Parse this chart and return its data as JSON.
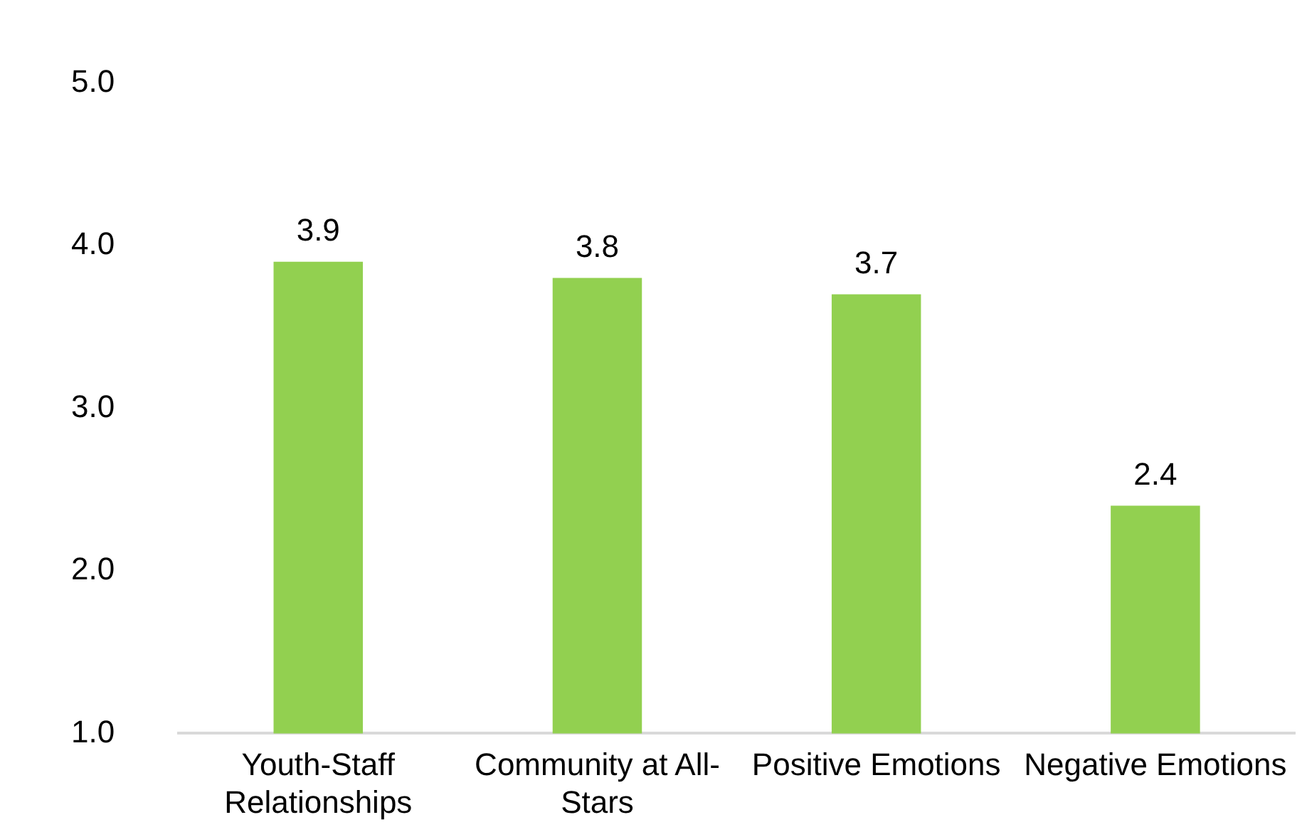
{
  "chart_data": {
    "type": "bar",
    "categories": [
      "Youth-Staff Relationships",
      "Community at All-Stars",
      "Positive Emotions",
      "Negative Emotions"
    ],
    "values": [
      3.9,
      3.8,
      3.7,
      2.4
    ],
    "color": "#92d050",
    "ylim": [
      1,
      5
    ],
    "yticks": [
      {
        "value": 1,
        "label": "1.0"
      },
      {
        "value": 2,
        "label": "2.0"
      },
      {
        "value": 3,
        "label": "3.0"
      },
      {
        "value": 4,
        "label": "4.0"
      },
      {
        "value": 5,
        "label": "5.0"
      }
    ],
    "grid": false,
    "legend": false,
    "data_labels": true
  }
}
